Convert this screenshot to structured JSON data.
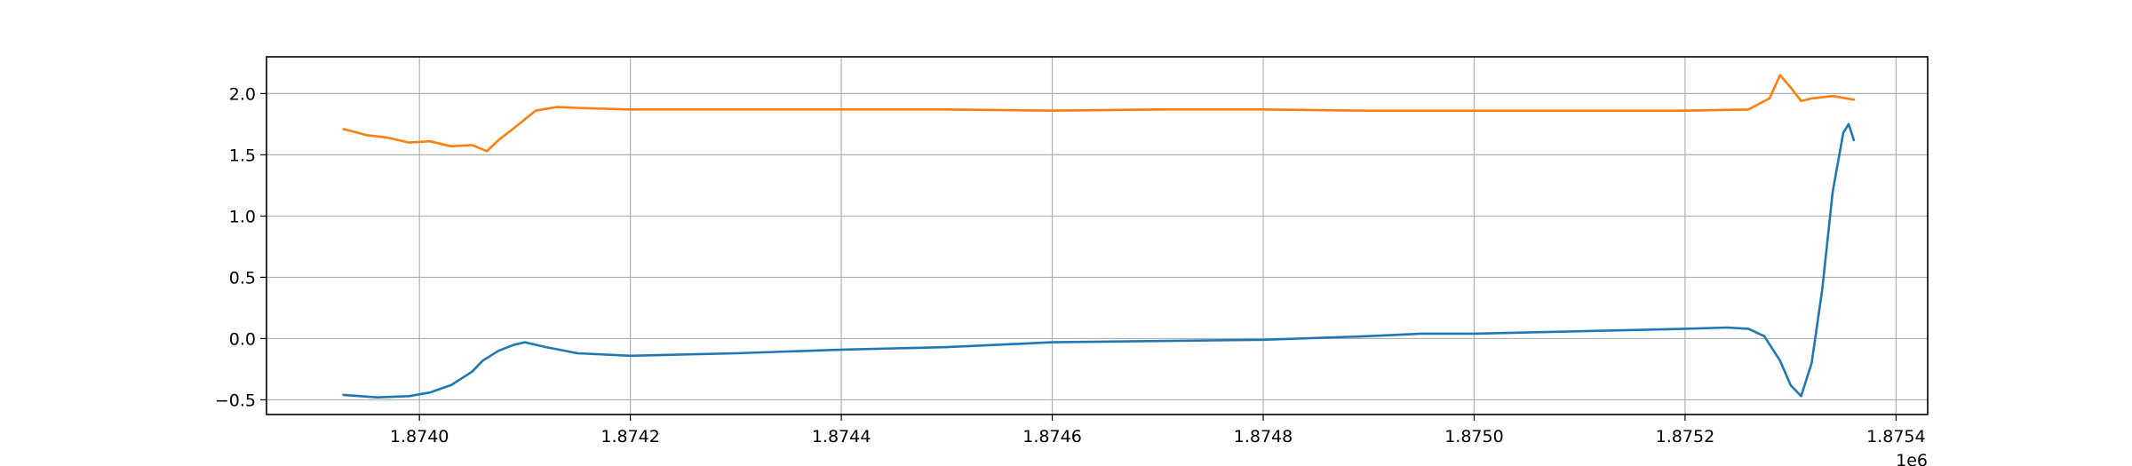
{
  "chart_data": {
    "type": "line",
    "title": "",
    "xlabel": "",
    "ylabel": "",
    "x_offset_label": "1e6",
    "xlim": [
      1873855,
      1875430
    ],
    "ylim": [
      -0.62,
      2.3
    ],
    "grid": true,
    "x_ticks": [
      1874000,
      1874200,
      1874400,
      1874600,
      1874800,
      1875000,
      1875200,
      1875400
    ],
    "x_tick_labels": [
      "1.8740",
      "1.8742",
      "1.8744",
      "1.8746",
      "1.8748",
      "1.8750",
      "1.8752",
      "1.8754"
    ],
    "y_ticks": [
      -0.5,
      0.0,
      0.5,
      1.0,
      1.5,
      2.0
    ],
    "y_tick_labels": [
      "−0.5",
      "0.0",
      "0.5",
      "1.0",
      "1.5",
      "2.0"
    ],
    "series": [
      {
        "color": "#1f77b4",
        "x": [
          1873928,
          1873960,
          1873990,
          1874010,
          1874030,
          1874050,
          1874060,
          1874075,
          1874090,
          1874100,
          1874120,
          1874150,
          1874200,
          1874300,
          1874400,
          1874500,
          1874600,
          1874700,
          1874800,
          1874900,
          1874950,
          1875000,
          1875100,
          1875200,
          1875240,
          1875260,
          1875275,
          1875290,
          1875300,
          1875310,
          1875320,
          1875330,
          1875340,
          1875350,
          1875355,
          1875360
        ],
        "values": [
          -0.46,
          -0.48,
          -0.47,
          -0.44,
          -0.38,
          -0.27,
          -0.18,
          -0.1,
          -0.05,
          -0.03,
          -0.07,
          -0.12,
          -0.14,
          -0.12,
          -0.09,
          -0.07,
          -0.03,
          -0.02,
          -0.01,
          0.02,
          0.04,
          0.04,
          0.06,
          0.08,
          0.09,
          0.08,
          0.02,
          -0.18,
          -0.38,
          -0.47,
          -0.2,
          0.4,
          1.2,
          1.68,
          1.75,
          1.62
        ]
      },
      {
        "color": "#ff7f0e",
        "x": [
          1873928,
          1873950,
          1873970,
          1873990,
          1874010,
          1874030,
          1874050,
          1874064,
          1874075,
          1874090,
          1874110,
          1874130,
          1874160,
          1874200,
          1874300,
          1874400,
          1874500,
          1874600,
          1874700,
          1874800,
          1874900,
          1875000,
          1875100,
          1875200,
          1875260,
          1875280,
          1875290,
          1875300,
          1875310,
          1875320,
          1875340,
          1875360
        ],
        "values": [
          1.71,
          1.66,
          1.64,
          1.6,
          1.61,
          1.57,
          1.58,
          1.53,
          1.62,
          1.72,
          1.86,
          1.89,
          1.88,
          1.87,
          1.87,
          1.87,
          1.87,
          1.86,
          1.87,
          1.87,
          1.86,
          1.86,
          1.86,
          1.86,
          1.87,
          1.96,
          2.15,
          2.05,
          1.94,
          1.96,
          1.98,
          1.95
        ]
      }
    ]
  }
}
